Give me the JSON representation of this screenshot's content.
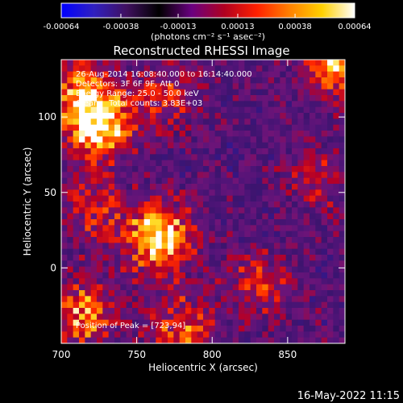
{
  "chart_data": {
    "type": "heatmap",
    "title": "Reconstructed RHESSI Image",
    "xlabel": "Heliocentric X (arcsec)",
    "ylabel": "Heliocentric Y (arcsec)",
    "xlim": [
      700,
      888
    ],
    "ylim": [
      -50,
      138
    ],
    "x_ticks": [
      700,
      750,
      800,
      850
    ],
    "y_ticks": [
      0,
      50,
      100
    ],
    "x_tick_labels": [
      "700",
      "750",
      "800",
      "850"
    ],
    "y_tick_labels": [
      "0",
      "50",
      "100"
    ],
    "colorbar": {
      "range": [
        -0.00064,
        0.00064
      ],
      "tick_values": [
        -0.00064,
        -0.00038,
        -0.00013,
        0.00013,
        0.00038,
        0.00064
      ],
      "tick_labels": [
        "-0.00064",
        "-0.00038",
        "-0.00013",
        "0.00013",
        "0.00038",
        "0.00064"
      ],
      "unit_label": "(photons cm⁻² s⁻¹ asec⁻²)",
      "colors": [
        "#0000ff",
        "#3020c0",
        "#401060",
        "#000000",
        "#6a0080",
        "#b00020",
        "#ff2000",
        "#ff8000",
        "#ffd000",
        "#ffffff"
      ]
    },
    "annotations": [
      "26-Aug-2014 16:08:40.000 to 16:14:40.000",
      "Detectors: 3F 6F 9F, Att 0",
      "Energy Range: 25.0 - 50.0 keV",
      "Clean    Total counts: 3.83E+03"
    ],
    "peak_label": "Position of Peak = [723,94]",
    "hot_regions": [
      {
        "x": 725,
        "y": 95,
        "strength": 1.0
      },
      {
        "x": 710,
        "y": 120,
        "strength": 0.55
      },
      {
        "x": 765,
        "y": 20,
        "strength": 0.95
      },
      {
        "x": 720,
        "y": 40,
        "strength": 0.45
      },
      {
        "x": 885,
        "y": 135,
        "strength": 0.85
      },
      {
        "x": 715,
        "y": -30,
        "strength": 0.7
      },
      {
        "x": 780,
        "y": -40,
        "strength": 0.55
      },
      {
        "x": 830,
        "y": -10,
        "strength": 0.45
      },
      {
        "x": 770,
        "y": 115,
        "strength": 0.45
      },
      {
        "x": 870,
        "y": 60,
        "strength": 0.35
      }
    ]
  },
  "footer": {
    "date": "16-May-2022 11:15"
  }
}
